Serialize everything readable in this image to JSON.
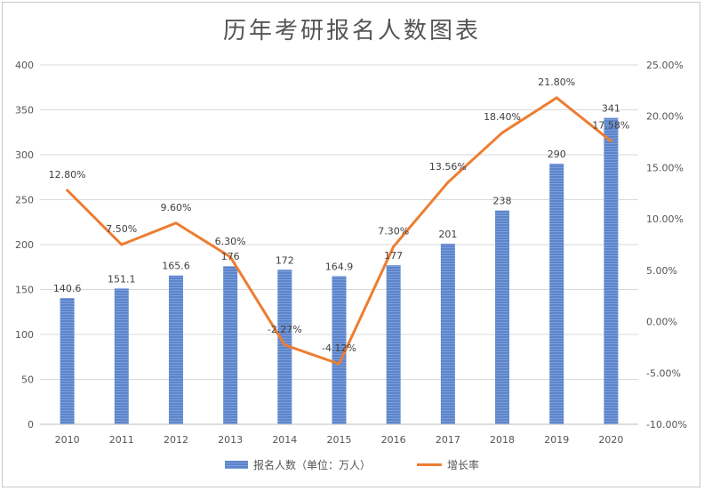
{
  "chart_data": {
    "type": "bar",
    "title": "历年考研报名人数图表",
    "categories": [
      "2010",
      "2011",
      "2012",
      "2013",
      "2014",
      "2015",
      "2016",
      "2017",
      "2018",
      "2019",
      "2020"
    ],
    "series": [
      {
        "name": "报名人数（单位：万人）",
        "type": "bar",
        "axis": "left",
        "values": [
          140.6,
          151.1,
          165.6,
          176,
          172,
          164.9,
          177,
          201,
          238,
          290,
          341
        ],
        "labels": [
          "140.6",
          "151.1",
          "165.6",
          "176",
          "172",
          "164.9",
          "177",
          "201",
          "238",
          "290",
          "341"
        ],
        "color": "#5b84cc"
      },
      {
        "name": "增长率",
        "type": "line",
        "axis": "right",
        "values": [
          12.8,
          7.5,
          9.6,
          6.3,
          -2.27,
          -4.12,
          7.3,
          13.56,
          18.4,
          21.8,
          17.58
        ],
        "labels": [
          "12.80%",
          "7.50%",
          "9.60%",
          "6.30%",
          "-2.27%",
          "-4.12%",
          "7.30%",
          "13.56%",
          "18.40%",
          "21.80%",
          "17.58%"
        ],
        "color": "#ed7d31"
      }
    ],
    "y_left": {
      "range": [
        0,
        400
      ],
      "ticks": [
        0,
        50,
        100,
        150,
        200,
        250,
        300,
        350,
        400
      ],
      "tick_labels": [
        "0",
        "50",
        "100",
        "150",
        "200",
        "250",
        "300",
        "350",
        "400"
      ]
    },
    "y_right": {
      "range": [
        -10,
        25
      ],
      "ticks": [
        -10,
        -5,
        0,
        5,
        10,
        15,
        20,
        25
      ],
      "tick_labels": [
        "-10.00%",
        "-5.00%",
        "0.00%",
        "5.00%",
        "10.00%",
        "15.00%",
        "20.00%",
        "25.00%"
      ]
    },
    "grid": true,
    "legend": "bottom"
  }
}
